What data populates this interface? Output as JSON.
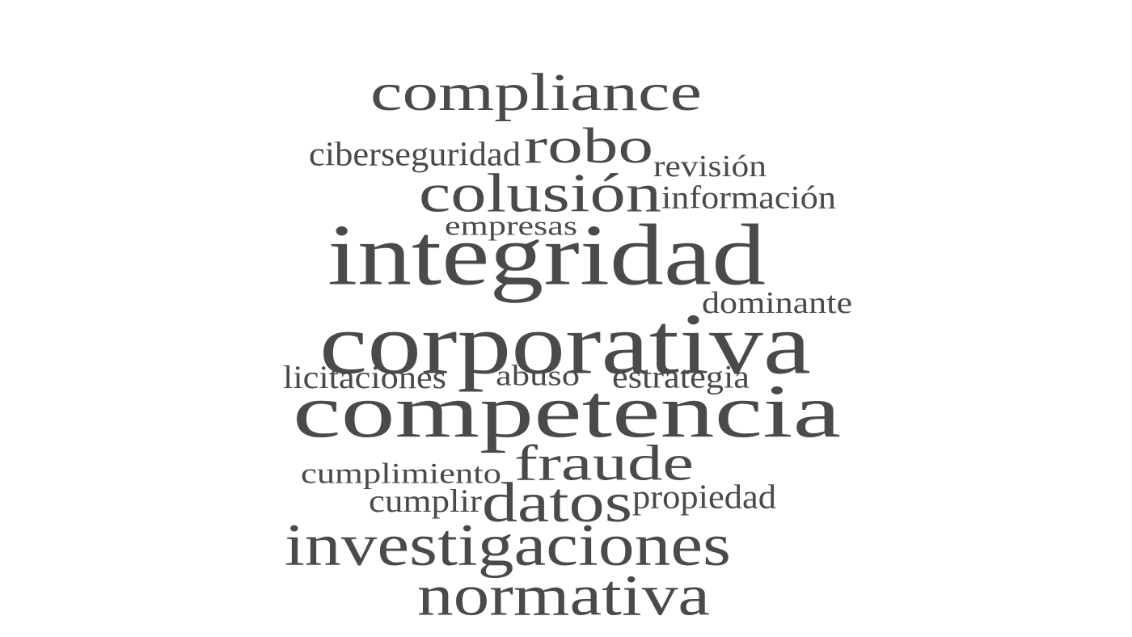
{
  "words": [
    {
      "id": "compliance",
      "text": "compliance"
    },
    {
      "id": "ciberseguridad",
      "text": "ciberseguridad"
    },
    {
      "id": "robo",
      "text": "robo"
    },
    {
      "id": "revision",
      "text": "revisión"
    },
    {
      "id": "colusion",
      "text": "colusión"
    },
    {
      "id": "informacion",
      "text": "información"
    },
    {
      "id": "empresas",
      "text": "empresas"
    },
    {
      "id": "integridad",
      "text": "integridad"
    },
    {
      "id": "dominante",
      "text": "dominante"
    },
    {
      "id": "corporativa",
      "text": "corporativa"
    },
    {
      "id": "licitaciones",
      "text": "licitaciones"
    },
    {
      "id": "abuso",
      "text": "abuso"
    },
    {
      "id": "estrategia",
      "text": "estrategia"
    },
    {
      "id": "competencia",
      "text": "competencia"
    },
    {
      "id": "cumplimiento",
      "text": "cumplimiento"
    },
    {
      "id": "fraude",
      "text": "fraude"
    },
    {
      "id": "cumplir",
      "text": "cumplir"
    },
    {
      "id": "datos",
      "text": "datos"
    },
    {
      "id": "propiedad",
      "text": "propiedad"
    },
    {
      "id": "investigaciones",
      "text": "investigaciones"
    },
    {
      "id": "normativa",
      "text": "normativa"
    }
  ],
  "colors": {
    "text": "#4a4a4a",
    "background": "#ffffff"
  }
}
